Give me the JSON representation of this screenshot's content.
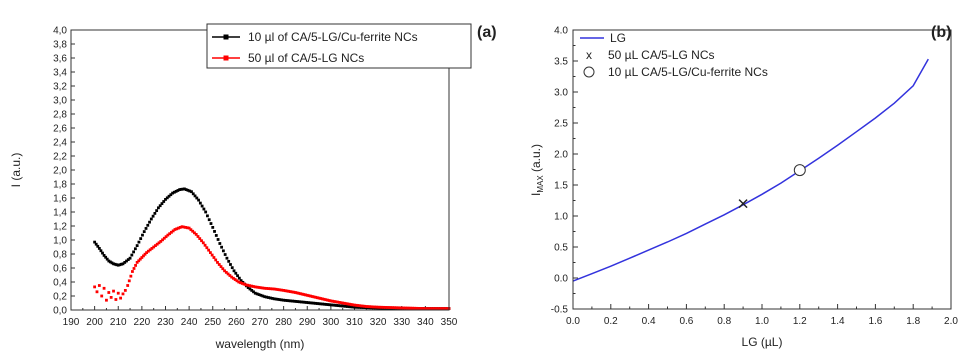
{
  "chart_data": [
    {
      "type": "scatter",
      "panel_label": "(a)",
      "xlabel": "wavelength (nm)",
      "ylabel": "I (a.u.)",
      "xlim": [
        190,
        350
      ],
      "ylim": [
        0,
        4.0
      ],
      "xticks": [
        "190",
        "200",
        "210",
        "220",
        "230",
        "240",
        "250",
        "260",
        "270",
        "280",
        "290",
        "300",
        "310",
        "320",
        "330",
        "340",
        "350"
      ],
      "yticks": [
        "0,0",
        "0,2",
        "0,4",
        "0,6",
        "0,8",
        "1,0",
        "1,2",
        "1,4",
        "1,6",
        "1,8",
        "2,0",
        "2,2",
        "2,4",
        "2,6",
        "2,8",
        "3,0",
        "3,2",
        "3,4",
        "3,6",
        "3,8",
        "4,0"
      ],
      "legend_position": "top-right",
      "series": [
        {
          "name": "10 µl of CA/5-LG/Cu-ferrite NCs",
          "color": "#000000",
          "points": [
            [
              200,
              0.97
            ],
            [
              202,
              0.88
            ],
            [
              204,
              0.78
            ],
            [
              206,
              0.7
            ],
            [
              208,
              0.66
            ],
            [
              210,
              0.64
            ],
            [
              212,
              0.66
            ],
            [
              215,
              0.74
            ],
            [
              218,
              0.92
            ],
            [
              221,
              1.12
            ],
            [
              224,
              1.3
            ],
            [
              227,
              1.46
            ],
            [
              230,
              1.58
            ],
            [
              233,
              1.67
            ],
            [
              236,
              1.72
            ],
            [
              238,
              1.73
            ],
            [
              241,
              1.69
            ],
            [
              244,
              1.57
            ],
            [
              247,
              1.4
            ],
            [
              250,
              1.18
            ],
            [
              253,
              0.95
            ],
            [
              256,
              0.74
            ],
            [
              259,
              0.56
            ],
            [
              262,
              0.42
            ],
            [
              265,
              0.32
            ],
            [
              268,
              0.24
            ],
            [
              272,
              0.19
            ],
            [
              276,
              0.16
            ],
            [
              280,
              0.14
            ],
            [
              286,
              0.12
            ],
            [
              292,
              0.1
            ],
            [
              298,
              0.08
            ],
            [
              304,
              0.06
            ],
            [
              310,
              0.04
            ],
            [
              318,
              0.03
            ],
            [
              330,
              0.02
            ],
            [
              350,
              0.02
            ]
          ]
        },
        {
          "name": "50 µl of CA/5-LG NCs",
          "color": "#ff0000",
          "points": [
            [
              200,
              0.33
            ],
            [
              201,
              0.26
            ],
            [
              202,
              0.35
            ],
            [
              203,
              0.2
            ],
            [
              204,
              0.31
            ],
            [
              205,
              0.14
            ],
            [
              206,
              0.25
            ],
            [
              207,
              0.18
            ],
            [
              208,
              0.27
            ],
            [
              209,
              0.15
            ],
            [
              210,
              0.24
            ],
            [
              211,
              0.17
            ],
            [
              212,
              0.23
            ],
            [
              213,
              0.28
            ],
            [
              214,
              0.35
            ],
            [
              216,
              0.55
            ],
            [
              218,
              0.68
            ],
            [
              220,
              0.75
            ],
            [
              222,
              0.82
            ],
            [
              225,
              0.9
            ],
            [
              228,
              0.98
            ],
            [
              231,
              1.07
            ],
            [
              234,
              1.15
            ],
            [
              237,
              1.19
            ],
            [
              240,
              1.17
            ],
            [
              243,
              1.08
            ],
            [
              246,
              0.96
            ],
            [
              249,
              0.82
            ],
            [
              252,
              0.68
            ],
            [
              255,
              0.56
            ],
            [
              258,
              0.47
            ],
            [
              261,
              0.4
            ],
            [
              264,
              0.36
            ],
            [
              268,
              0.33
            ],
            [
              272,
              0.31
            ],
            [
              276,
              0.3
            ],
            [
              280,
              0.28
            ],
            [
              285,
              0.25
            ],
            [
              290,
              0.21
            ],
            [
              295,
              0.17
            ],
            [
              300,
              0.13
            ],
            [
              305,
              0.1
            ],
            [
              310,
              0.07
            ],
            [
              315,
              0.05
            ],
            [
              320,
              0.04
            ],
            [
              330,
              0.03
            ],
            [
              340,
              0.02
            ],
            [
              350,
              0.02
            ]
          ]
        }
      ]
    },
    {
      "type": "line",
      "panel_label": "(b)",
      "xlabel": "LG (µL)",
      "ylabel_main": "I",
      "ylabel_sub": "MAX",
      "ylabel_unit": " (a.u.)",
      "xlim": [
        0,
        2.0
      ],
      "ylim": [
        -0.5,
        4.0
      ],
      "xticks": [
        "0.0",
        "0.2",
        "0.4",
        "0.6",
        "0.8",
        "1.0",
        "1.2",
        "1.4",
        "1.6",
        "1.8",
        "2.0"
      ],
      "yticks": [
        "-0.5",
        "0.0",
        "0.5",
        "1.0",
        "1.5",
        "2.0",
        "2.5",
        "3.0",
        "3.5",
        "4.0"
      ],
      "legend_position": "top-left",
      "series": [
        {
          "name": "LG",
          "color": "#3333dd",
          "points": [
            [
              0.0,
              -0.05
            ],
            [
              0.1,
              0.07
            ],
            [
              0.2,
              0.19
            ],
            [
              0.3,
              0.32
            ],
            [
              0.4,
              0.45
            ],
            [
              0.5,
              0.58
            ],
            [
              0.6,
              0.72
            ],
            [
              0.7,
              0.87
            ],
            [
              0.8,
              1.02
            ],
            [
              0.9,
              1.18
            ],
            [
              1.0,
              1.35
            ],
            [
              1.1,
              1.53
            ],
            [
              1.2,
              1.73
            ],
            [
              1.3,
              1.93
            ],
            [
              1.4,
              2.14
            ],
            [
              1.5,
              2.36
            ],
            [
              1.6,
              2.58
            ],
            [
              1.7,
              2.82
            ],
            [
              1.8,
              3.1
            ],
            [
              1.88,
              3.53
            ]
          ]
        },
        {
          "name": "50 µL CA/5-LG NCs",
          "marker": "x",
          "points": [
            [
              0.9,
              1.2
            ]
          ]
        },
        {
          "name": "10 µL CA/5-LG/Cu-ferrite NCs",
          "marker": "circle",
          "points": [
            [
              1.2,
              1.74
            ]
          ]
        }
      ]
    }
  ]
}
